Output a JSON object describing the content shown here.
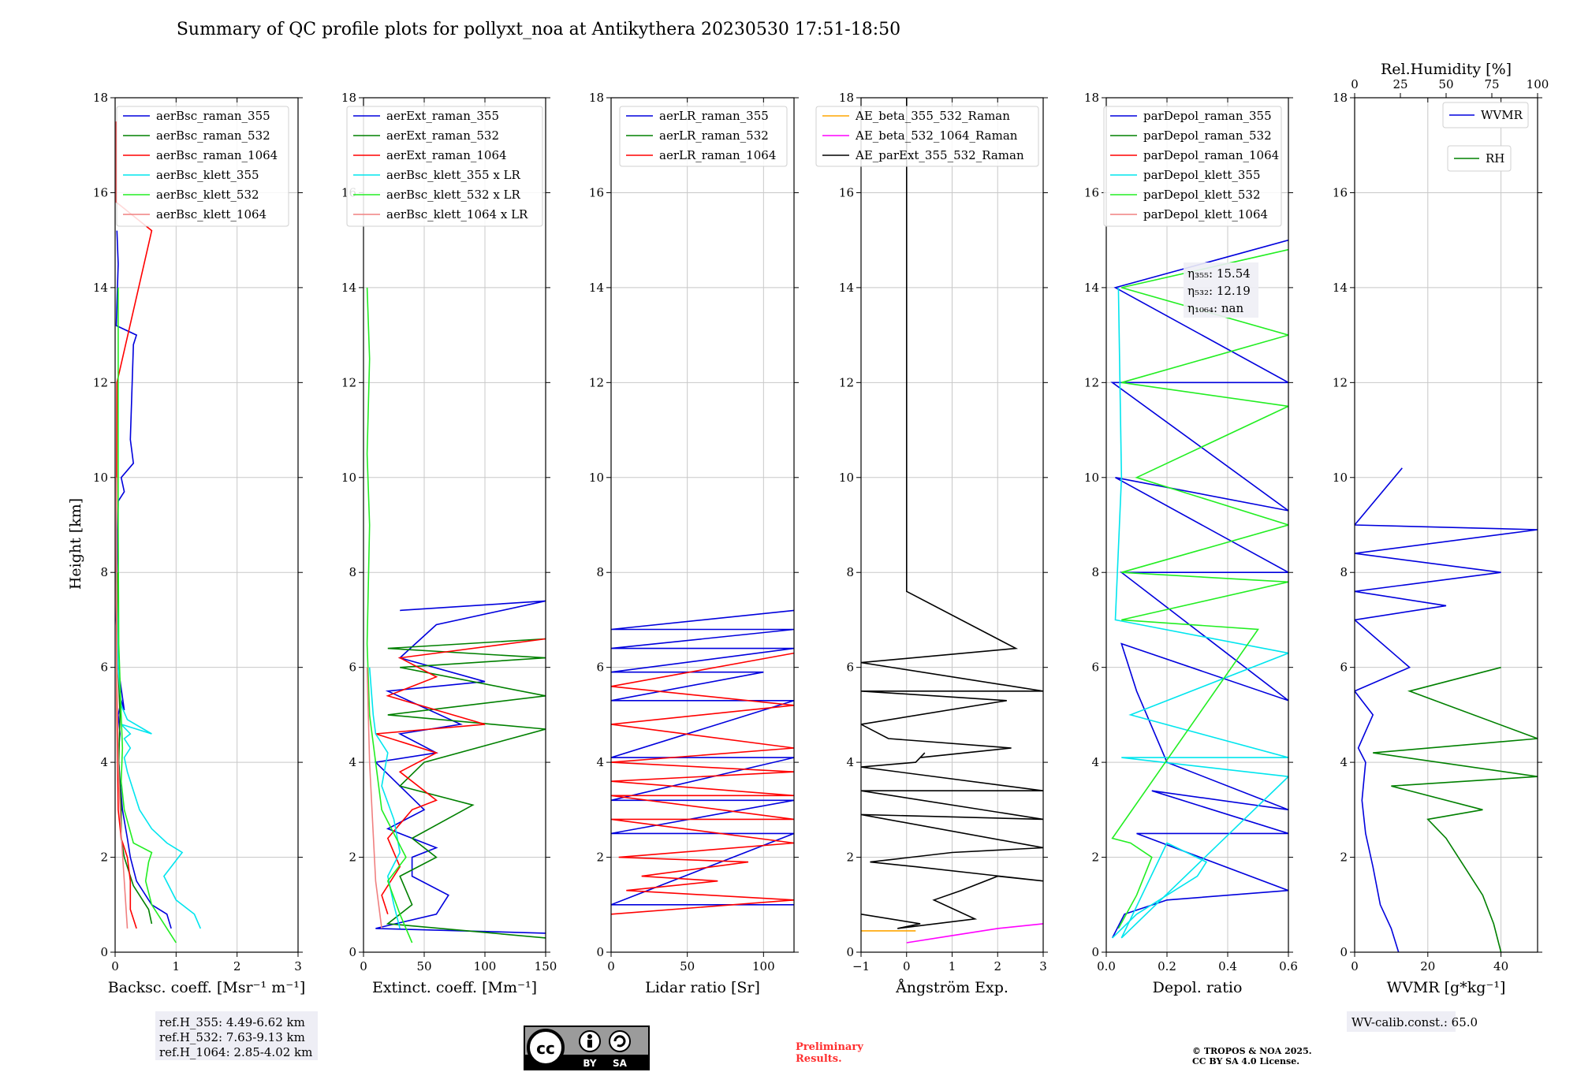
{
  "title": "Summary of QC profile plots for pollyxt_noa at Antikythera 20230530 17:51-18:50",
  "y_label": "Height [km]",
  "chart_data": [
    {
      "type": "line",
      "name": "backscatter",
      "xlabel": "Backsc. coeff. [Msr⁻¹ m⁻¹]",
      "xlim": [
        0,
        3
      ],
      "ylim": [
        0,
        18
      ],
      "xticks": [
        0,
        1,
        2,
        3
      ],
      "xtick_labels": [
        "0",
        "1",
        "2",
        "3"
      ],
      "yticks": [
        0,
        2,
        4,
        6,
        8,
        10,
        12,
        14,
        16,
        18
      ],
      "series": [
        {
          "name": "aerBsc_raman_355",
          "color": "#0000dd",
          "x": [
            0.92,
            0.85,
            0.6,
            0.35,
            0.25,
            0.2,
            0.12,
            0.08,
            0.05,
            0.08,
            0.05,
            0.1,
            0.15,
            0.05,
            0.02,
            0.03,
            0.05,
            0.15,
            0.1,
            0.3,
            0.25,
            0.3,
            0.35,
            0.02,
            0.05,
            0.03
          ],
          "y": [
            0.5,
            0.8,
            1.0,
            1.5,
            2.0,
            2.4,
            3.0,
            3.6,
            4.2,
            4.6,
            5.0,
            5.3,
            5.1,
            6.0,
            7.0,
            7.9,
            9.5,
            9.7,
            10.0,
            10.3,
            10.8,
            12.8,
            13.0,
            13.2,
            14.5,
            15.2
          ]
        },
        {
          "name": "aerBsc_raman_532",
          "color": "#008000",
          "x": [
            0.6,
            0.55,
            0.3,
            0.15,
            0.1,
            0.1,
            0.06,
            0.08,
            0.05,
            0.04
          ],
          "y": [
            0.6,
            0.9,
            1.4,
            2.0,
            2.4,
            3.0,
            4.0,
            5.0,
            6.0,
            8.0
          ]
        },
        {
          "name": "aerBsc_raman_1064",
          "color": "#ff0000",
          "x": [
            0.35,
            0.25,
            0.25,
            0.2,
            0.1,
            0.05,
            0.03,
            0.02,
            0.03,
            0.6,
            0.02,
            0.02
          ],
          "y": [
            0.5,
            0.9,
            1.5,
            2.0,
            2.4,
            3.0,
            5.0,
            8.0,
            12.0,
            15.2,
            15.8,
            17.5
          ]
        },
        {
          "name": "aerBsc_klett_355",
          "color": "#00e5ee",
          "x": [
            1.4,
            1.3,
            1.0,
            0.8,
            1.1,
            0.85,
            0.6,
            0.4,
            0.3,
            0.2,
            0.15,
            0.25,
            0.15,
            0.25,
            0.1,
            0.6,
            0.2,
            0.1,
            0.05,
            0.02
          ],
          "y": [
            0.5,
            0.8,
            1.1,
            1.6,
            2.1,
            2.3,
            2.6,
            3.0,
            3.4,
            3.8,
            4.1,
            4.3,
            4.5,
            4.6,
            4.8,
            4.6,
            4.9,
            5.2,
            6.0,
            8.0
          ]
        },
        {
          "name": "aerBsc_klett_532",
          "color": "#22ee22",
          "x": [
            1.0,
            0.85,
            0.6,
            0.5,
            0.55,
            0.6,
            0.3,
            0.15,
            0.1,
            0.12,
            0.1,
            0.06,
            0.05,
            0.05
          ],
          "y": [
            0.2,
            0.5,
            1.0,
            1.5,
            1.9,
            2.1,
            2.3,
            3.0,
            3.6,
            4.3,
            5.0,
            6.5,
            9.0,
            14.0
          ]
        },
        {
          "name": "aerBsc_klett_1064",
          "color": "#f08080",
          "x": [
            0.2,
            0.15,
            0.1,
            0.05,
            0.03,
            0.02
          ],
          "y": [
            0.5,
            1.5,
            2.5,
            4.0,
            6.0,
            10.0
          ]
        }
      ],
      "ref_heights": [
        "ref.H_355: 4.49-6.62 km",
        "ref.H_532: 7.63-9.13 km",
        "ref.H_1064: 2.85-4.02 km"
      ]
    },
    {
      "type": "line",
      "name": "extinction",
      "xlabel": "Extinct. coeff. [Mm⁻¹]",
      "xlim": [
        0,
        150
      ],
      "ylim": [
        0,
        18
      ],
      "xticks": [
        0,
        50,
        100,
        150
      ],
      "xtick_labels": [
        "0",
        "50",
        "100",
        "150"
      ],
      "yticks": [
        0,
        2,
        4,
        6,
        8,
        10,
        12,
        14,
        16,
        18
      ],
      "series": [
        {
          "name": "aerExt_raman_355",
          "color": "#0000dd",
          "x": [
            150,
            10,
            60,
            70,
            40,
            40,
            60,
            20,
            50,
            30,
            10,
            60,
            30,
            80,
            20,
            100,
            30,
            60,
            150,
            30
          ],
          "y": [
            0.4,
            0.5,
            0.8,
            1.2,
            1.6,
            2.0,
            2.2,
            2.6,
            3.0,
            3.5,
            4.0,
            4.2,
            4.6,
            4.8,
            5.5,
            5.7,
            6.2,
            6.9,
            7.4,
            7.2
          ]
        },
        {
          "name": "aerExt_raman_532",
          "color": "#008000",
          "x": [
            150,
            20,
            40,
            30,
            60,
            40,
            90,
            30,
            50,
            150,
            20,
            150,
            30,
            150,
            20,
            150
          ],
          "y": [
            0.3,
            0.6,
            1.0,
            1.6,
            2.0,
            2.4,
            3.1,
            3.5,
            4.0,
            4.7,
            5.0,
            5.4,
            6.0,
            6.2,
            6.4,
            6.6
          ]
        },
        {
          "name": "aerExt_raman_1064",
          "color": "#ff0000",
          "x": [
            20,
            15,
            30,
            20,
            40,
            60,
            30,
            60,
            10,
            100,
            20,
            60,
            30,
            150
          ],
          "y": [
            0.8,
            1.2,
            1.8,
            2.4,
            3.0,
            3.2,
            3.8,
            4.2,
            4.6,
            4.8,
            5.4,
            5.8,
            6.2,
            6.6
          ]
        },
        {
          "name": "aerBsc_klett_355 x LR",
          "color": "#00e5ee",
          "x": [
            30,
            25,
            20,
            30,
            25,
            15,
            20,
            10,
            8,
            5
          ],
          "y": [
            0.5,
            1.0,
            1.6,
            2.1,
            2.8,
            3.5,
            4.2,
            4.6,
            5.0,
            6.0
          ]
        },
        {
          "name": "aerBsc_klett_532 x LR",
          "color": "#22ee22",
          "x": [
            40,
            30,
            20,
            35,
            15,
            10,
            5,
            3,
            5,
            3,
            5,
            3
          ],
          "y": [
            0.2,
            0.8,
            1.5,
            2.0,
            3.0,
            4.0,
            5.0,
            6.5,
            9.0,
            10.5,
            12.5,
            14.0
          ]
        },
        {
          "name": "aerBsc_klett_1064 x LR",
          "color": "#f08080",
          "x": [
            15,
            10,
            8,
            5,
            3
          ],
          "y": [
            0.5,
            1.5,
            2.5,
            4.0,
            6.0
          ]
        }
      ]
    },
    {
      "type": "line",
      "name": "lidar_ratio",
      "xlabel": "Lidar ratio [Sr]",
      "xlim": [
        0,
        120
      ],
      "ylim": [
        0,
        18
      ],
      "xticks": [
        0,
        50,
        100
      ],
      "xtick_labels": [
        "0",
        "50",
        "100"
      ],
      "yticks": [
        0,
        2,
        4,
        6,
        8,
        10,
        12,
        14,
        16,
        18
      ],
      "series": [
        {
          "name": "aerLR_raman_355",
          "color": "#0000dd",
          "x": [
            120,
            0,
            120,
            0,
            120,
            0,
            120,
            0,
            120,
            0,
            100,
            0,
            120,
            0,
            120,
            0,
            120
          ],
          "y": [
            1.0,
            1.0,
            2.5,
            2.5,
            3.2,
            3.2,
            4.1,
            4.1,
            5.3,
            5.3,
            5.9,
            5.9,
            6.4,
            6.4,
            6.8,
            6.8,
            7.2
          ]
        },
        {
          "name": "aerLR_raman_532",
          "color": "#008000",
          "x": [],
          "y": []
        },
        {
          "name": "aerLR_raman_1064",
          "color": "#ff0000",
          "x": [
            0,
            120,
            10,
            70,
            20,
            90,
            5,
            120,
            0,
            120,
            0,
            120,
            0,
            120,
            0,
            120,
            0,
            120,
            0,
            120
          ],
          "y": [
            0.8,
            1.1,
            1.3,
            1.5,
            1.6,
            1.9,
            2.0,
            2.3,
            2.8,
            2.8,
            3.3,
            3.3,
            3.6,
            3.8,
            4.0,
            4.3,
            4.8,
            5.2,
            5.6,
            6.3
          ]
        }
      ]
    },
    {
      "type": "line",
      "name": "angstrom",
      "xlabel": "Ångström Exp.",
      "xlim": [
        -1,
        3
      ],
      "ylim": [
        0,
        18
      ],
      "xticks": [
        -1,
        0,
        1,
        2,
        3
      ],
      "xtick_labels": [
        "−1",
        "0",
        "1",
        "2",
        "3"
      ],
      "yticks": [
        0,
        2,
        4,
        6,
        8,
        10,
        12,
        14,
        16,
        18
      ],
      "series": [
        {
          "name": "AE_beta_355_532_Raman",
          "color": "#ffa500",
          "x": [
            -1,
            0.2
          ],
          "y": [
            0.45,
            0.45
          ]
        },
        {
          "name": "AE_beta_532_1064_Raman",
          "color": "#ff00ff",
          "x": [
            0.0,
            1.0,
            2.0,
            3.0
          ],
          "y": [
            0.2,
            0.35,
            0.5,
            0.6
          ]
        },
        {
          "name": "AE_parExt_355_532_Raman",
          "color": "#000000",
          "x": [
            -1,
            0.3,
            -0.2,
            1.5,
            0.6,
            1.2,
            2.0,
            3.0,
            0.2,
            -0.8,
            1.0,
            3.0,
            -1,
            3.0,
            -1,
            3.0,
            -1,
            0.2,
            0.4,
            0.3,
            2.3,
            -0.4,
            -1,
            2.2,
            -1,
            3.0,
            -1,
            2.4,
            0,
            0,
            0
          ],
          "y": [
            0.8,
            0.6,
            0.5,
            0.7,
            1.1,
            1.3,
            1.6,
            1.5,
            1.8,
            1.9,
            2.1,
            2.2,
            2.9,
            2.8,
            3.4,
            3.4,
            3.9,
            4.0,
            4.2,
            4.1,
            4.3,
            4.5,
            4.8,
            5.3,
            5.5,
            5.5,
            6.1,
            6.4,
            7.6,
            8.0,
            18.0
          ]
        }
      ]
    },
    {
      "type": "line",
      "name": "depolarization",
      "xlabel": "Depol. ratio",
      "xlim": [
        0,
        0.6
      ],
      "ylim": [
        0,
        18
      ],
      "xticks": [
        0,
        0.2,
        0.4,
        0.6
      ],
      "xtick_labels": [
        "0.0",
        "0.2",
        "0.4",
        "0.6"
      ],
      "yticks": [
        0,
        2,
        4,
        6,
        8,
        10,
        12,
        14,
        16,
        18
      ],
      "series": [
        {
          "name": "parDepol_raman_355",
          "color": "#0000dd",
          "x": [
            0.02,
            0.06,
            0.2,
            0.6,
            0.1,
            0.6,
            0.15,
            0.6,
            0.2,
            0.1,
            0.05,
            0.6,
            0.05,
            0.6,
            0.03,
            0.6,
            0.02,
            0.6,
            0.03,
            0.6
          ],
          "y": [
            0.3,
            0.8,
            1.1,
            1.3,
            2.5,
            2.5,
            3.4,
            3.0,
            4.0,
            5.5,
            6.5,
            5.3,
            8.0,
            8.0,
            10.0,
            9.3,
            12.0,
            12.0,
            14.0,
            15.0
          ]
        },
        {
          "name": "parDepol_raman_532",
          "color": "#008000",
          "x": [],
          "y": []
        },
        {
          "name": "parDepol_raman_1064",
          "color": "#ff0000",
          "x": [],
          "y": []
        },
        {
          "name": "parDepol_klett_355",
          "color": "#00e5ee",
          "x": [
            0.02,
            0.1,
            0.3,
            0.33,
            0.2,
            0.05,
            0.6,
            0.05,
            0.6,
            0.08,
            0.6,
            0.03,
            0.05,
            0.04
          ],
          "y": [
            0.3,
            0.8,
            1.6,
            1.9,
            2.3,
            0.3,
            3.7,
            4.1,
            4.1,
            5.0,
            6.3,
            7.0,
            10.0,
            14.0
          ]
        },
        {
          "name": "parDepol_klett_532",
          "color": "#22ee22",
          "x": [
            0.04,
            0.1,
            0.15,
            0.08,
            0.02,
            0.5,
            0.05,
            0.6,
            0.05,
            0.6,
            0.1,
            0.6,
            0.05,
            0.6,
            0.05,
            0.6
          ],
          "y": [
            0.5,
            1.2,
            2.0,
            2.3,
            2.4,
            6.8,
            7.0,
            7.8,
            8.0,
            9.0,
            10.0,
            11.5,
            12.0,
            13.0,
            14.0,
            14.8
          ]
        },
        {
          "name": "parDepol_klett_1064",
          "color": "#f08080",
          "x": [],
          "y": []
        }
      ],
      "annotation": [
        "η₃₅₅: 15.54",
        "η₅₃₂: 12.19",
        "η₁₀₆₄: nan"
      ]
    },
    {
      "type": "line",
      "name": "water_vapor",
      "xlabel": "WVMR [g*kg⁻¹]",
      "top_xlabel": "Rel.Humidity [%]",
      "xlim": [
        0,
        50
      ],
      "ylim": [
        0,
        18
      ],
      "xticks": [
        0,
        20,
        40
      ],
      "xtick_labels": [
        "0",
        "20",
        "40"
      ],
      "top_xlim": [
        0,
        100
      ],
      "top_xticks": [
        0,
        25,
        50,
        75,
        100
      ],
      "top_xtick_labels": [
        "0",
        "25",
        "50",
        "75",
        "100"
      ],
      "yticks": [
        0,
        2,
        4,
        6,
        8,
        10,
        12,
        14,
        16,
        18
      ],
      "series": [
        {
          "name": "WVMR",
          "color": "#0000dd",
          "x": [
            12,
            10,
            7,
            5,
            3,
            2,
            3,
            1,
            5,
            0,
            15,
            0,
            25,
            0,
            40,
            0,
            50,
            0,
            13
          ],
          "y": [
            0.0,
            0.5,
            1.0,
            1.8,
            2.5,
            3.2,
            4.0,
            4.3,
            5.0,
            5.5,
            6.0,
            7.0,
            7.3,
            7.6,
            8.0,
            8.4,
            8.9,
            9.0,
            10.2
          ]
        },
        {
          "name": "RH",
          "color": "#008000",
          "x": [
            40,
            38,
            35,
            30,
            25,
            20,
            35,
            10,
            50,
            5,
            50,
            15,
            40
          ],
          "y": [
            0.0,
            0.6,
            1.2,
            1.8,
            2.4,
            2.8,
            3.0,
            3.5,
            3.7,
            4.2,
            4.5,
            5.5,
            6.0
          ]
        }
      ],
      "wv_calib": "WV-calib.const.: 65.0"
    }
  ],
  "footer": {
    "license_badge": {
      "cc": "cc",
      "by": "BY",
      "sa": "SA"
    },
    "preliminary": [
      "Preliminary",
      "Results."
    ],
    "copyright": [
      "© TROPOS & NOA 2025.",
      "CC BY SA 4.0 License."
    ]
  }
}
